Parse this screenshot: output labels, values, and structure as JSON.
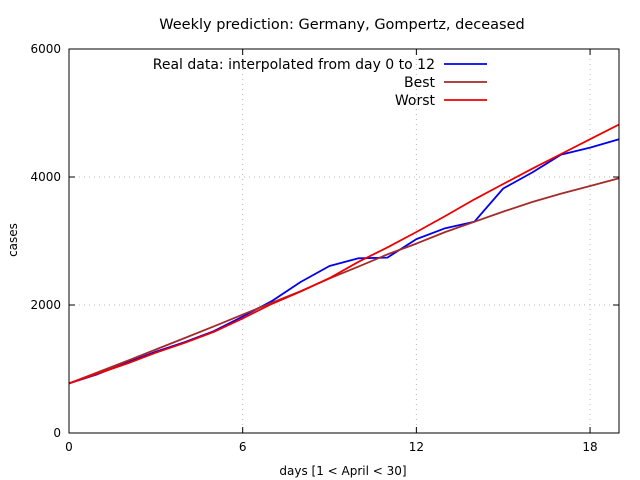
{
  "chart_data": {
    "type": "line",
    "title": "Weekly prediction: Germany, Gompertz, deceased",
    "xlabel": "days [1 < April < 30]",
    "ylabel": "cases",
    "xlim": [
      0,
      19
    ],
    "ylim": [
      0,
      6000
    ],
    "xticks": [
      0,
      6,
      12,
      18
    ],
    "yticks": [
      0,
      2000,
      4000,
      6000
    ],
    "grid": true,
    "legend_position": "top-right",
    "series": [
      {
        "name": "Real data: interpolated from day 0 to 12",
        "color": "#0000ee",
        "x": [
          0,
          1,
          2,
          3,
          4,
          5,
          6,
          7,
          8,
          9,
          10,
          11,
          12,
          13,
          14,
          15,
          16,
          17,
          18,
          19
        ],
        "y": [
          775,
          920,
          1100,
          1270,
          1420,
          1590,
          1820,
          2060,
          2360,
          2610,
          2730,
          2740,
          3030,
          3200,
          3300,
          3820,
          4070,
          4350,
          4460,
          4590
        ]
      },
      {
        "name": "Best",
        "color": "#a52a2a",
        "x": [
          0,
          1,
          2,
          3,
          4,
          5,
          6,
          7,
          8,
          9,
          10,
          11,
          12,
          13,
          14,
          15,
          16,
          17,
          18,
          19
        ],
        "y": [
          775,
          950,
          1125,
          1305,
          1485,
          1665,
          1850,
          2035,
          2215,
          2415,
          2600,
          2790,
          2960,
          3140,
          3300,
          3460,
          3610,
          3740,
          3860,
          3980
        ]
      },
      {
        "name": "Worst",
        "color": "#ee0000",
        "x": [
          0,
          1,
          2,
          3,
          4,
          5,
          6,
          7,
          8,
          9,
          10,
          11,
          12,
          13,
          14,
          15,
          16,
          17,
          18,
          19
        ],
        "y": [
          775,
          930,
          1085,
          1255,
          1410,
          1580,
          1790,
          2015,
          2210,
          2420,
          2675,
          2900,
          3140,
          3390,
          3650,
          3890,
          4130,
          4360,
          4590,
          4820
        ]
      }
    ]
  }
}
